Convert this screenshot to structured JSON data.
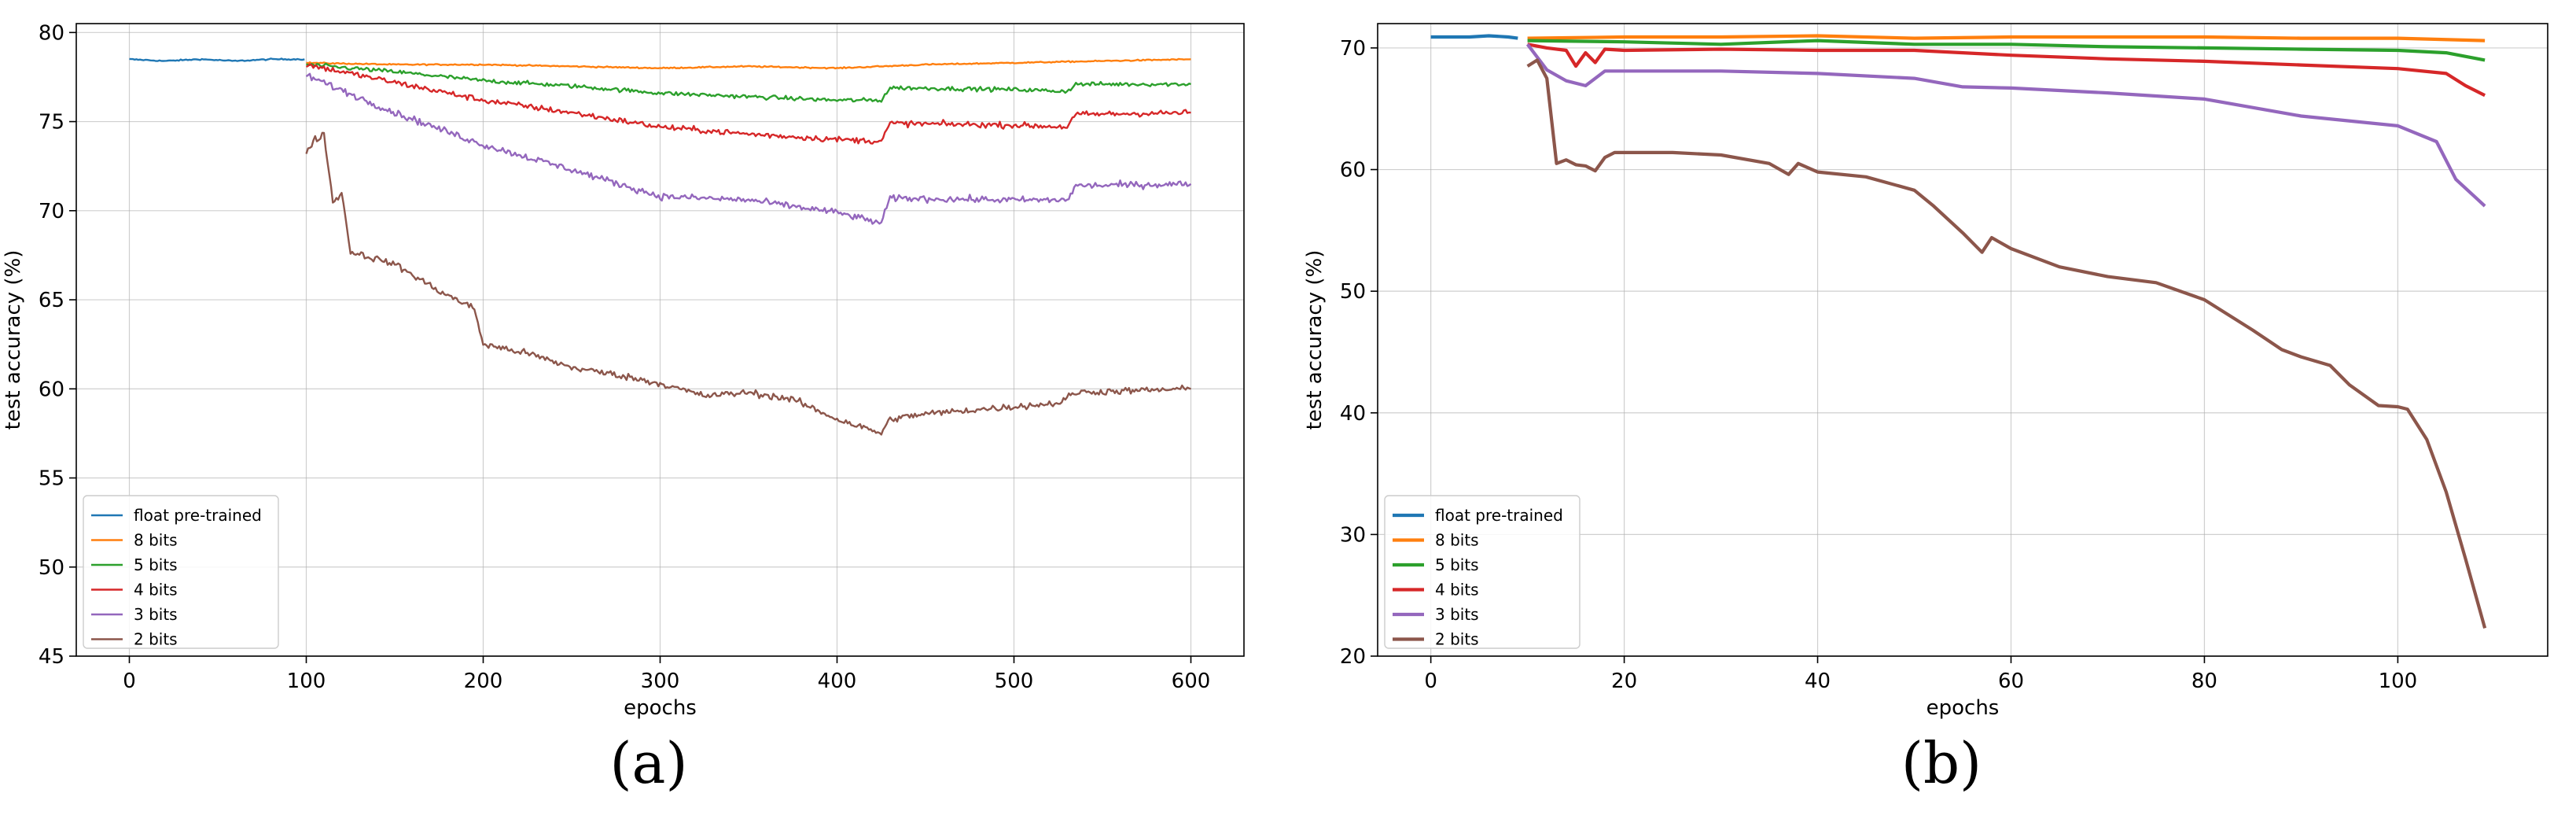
{
  "chart_data": [
    {
      "type": "line",
      "caption": "(a)",
      "xlabel": "epochs",
      "ylabel": "test accuracy (%)",
      "xlim": [
        -30,
        630
      ],
      "ylim": [
        45,
        80.5
      ],
      "xticks": [
        0,
        100,
        200,
        300,
        400,
        500,
        600
      ],
      "yticks": [
        45,
        50,
        55,
        60,
        65,
        70,
        75,
        80
      ],
      "grid": true,
      "legend_position": "lower-left",
      "noisy": true,
      "series": [
        {
          "name": "float pre-trained",
          "color": "#1f77b4",
          "x": [
            0,
            20,
            40,
            60,
            80,
            99
          ],
          "y": [
            78.5,
            78.4,
            78.5,
            78.4,
            78.5,
            78.5
          ]
        },
        {
          "name": "8 bits",
          "color": "#ff7f0e",
          "x": [
            100,
            150,
            200,
            250,
            300,
            350,
            400,
            450,
            500,
            550,
            600
          ],
          "y": [
            78.3,
            78.2,
            78.2,
            78.1,
            78.0,
            78.1,
            78.0,
            78.2,
            78.3,
            78.4,
            78.5
          ]
        },
        {
          "name": "5 bits",
          "color": "#2ca02c",
          "x": [
            100,
            150,
            200,
            250,
            300,
            350,
            400,
            425,
            430,
            500,
            530,
            535,
            600
          ],
          "y": [
            78.2,
            77.8,
            77.3,
            77.0,
            76.6,
            76.4,
            76.2,
            76.2,
            76.9,
            76.8,
            76.7,
            77.1,
            77.1
          ]
        },
        {
          "name": "4 bits",
          "color": "#d62728",
          "x": [
            100,
            150,
            200,
            250,
            300,
            350,
            400,
            425,
            430,
            500,
            530,
            535,
            600
          ],
          "y": [
            78.2,
            77.2,
            76.2,
            75.5,
            74.7,
            74.3,
            74.0,
            73.9,
            74.9,
            74.8,
            74.7,
            75.4,
            75.5
          ]
        },
        {
          "name": "3 bits",
          "color": "#9467bd",
          "x": [
            100,
            150,
            200,
            250,
            300,
            350,
            400,
            425,
            430,
            500,
            530,
            535,
            600
          ],
          "y": [
            77.6,
            75.5,
            73.7,
            72.3,
            70.8,
            70.6,
            69.9,
            69.3,
            70.7,
            70.6,
            70.6,
            71.4,
            71.5
          ]
        },
        {
          "name": "2 bits",
          "color": "#8c564b",
          "x": [
            100,
            105,
            110,
            115,
            120,
            125,
            150,
            175,
            195,
            200,
            225,
            250,
            275,
            300,
            325,
            350,
            375,
            400,
            425,
            430,
            450,
            500,
            525,
            535,
            600
          ],
          "y": [
            73.3,
            74.0,
            74.3,
            70.5,
            71.0,
            67.7,
            67.0,
            65.5,
            64.5,
            62.5,
            62.0,
            61.2,
            60.8,
            60.3,
            59.6,
            59.8,
            59.4,
            58.3,
            57.5,
            58.3,
            58.6,
            59.0,
            59.2,
            59.8,
            60.0
          ]
        }
      ]
    },
    {
      "type": "line",
      "caption": "(b)",
      "xlabel": "epochs",
      "ylabel": "test accuracy (%)",
      "xlim": [
        -5.5,
        115.5
      ],
      "ylim": [
        20,
        72
      ],
      "xticks": [
        0,
        20,
        40,
        60,
        80,
        100
      ],
      "yticks": [
        20,
        30,
        40,
        50,
        60,
        70
      ],
      "grid": true,
      "legend_position": "lower-left",
      "noisy": false,
      "series": [
        {
          "name": "float pre-trained",
          "color": "#1f77b4",
          "x": [
            0,
            2,
            4,
            6,
            8,
            9
          ],
          "y": [
            70.9,
            70.9,
            70.9,
            71.0,
            70.9,
            70.8
          ]
        },
        {
          "name": "8 bits",
          "color": "#ff7f0e",
          "x": [
            10,
            20,
            30,
            40,
            50,
            60,
            70,
            80,
            90,
            100,
            109
          ],
          "y": [
            70.8,
            70.9,
            70.9,
            71.0,
            70.8,
            70.9,
            70.9,
            70.9,
            70.8,
            70.8,
            70.6
          ]
        },
        {
          "name": "5 bits",
          "color": "#2ca02c",
          "x": [
            10,
            20,
            30,
            40,
            50,
            60,
            70,
            80,
            90,
            100,
            105,
            109
          ],
          "y": [
            70.6,
            70.5,
            70.3,
            70.6,
            70.3,
            70.3,
            70.1,
            70.0,
            69.9,
            69.8,
            69.6,
            69.0
          ]
        },
        {
          "name": "4 bits",
          "color": "#d62728",
          "x": [
            10,
            12,
            14,
            15,
            16,
            17,
            18,
            20,
            30,
            40,
            50,
            60,
            70,
            80,
            90,
            100,
            105,
            107,
            109
          ],
          "y": [
            70.3,
            70.0,
            69.8,
            68.5,
            69.6,
            68.8,
            69.9,
            69.8,
            69.9,
            69.8,
            69.8,
            69.4,
            69.1,
            68.9,
            68.6,
            68.3,
            67.9,
            66.9,
            66.1
          ]
        },
        {
          "name": "3 bits",
          "color": "#9467bd",
          "x": [
            10,
            12,
            14,
            16,
            18,
            20,
            30,
            40,
            50,
            55,
            60,
            70,
            80,
            90,
            100,
            104,
            106,
            109
          ],
          "y": [
            70.3,
            68.2,
            67.3,
            66.9,
            68.1,
            68.1,
            68.1,
            67.9,
            67.5,
            66.8,
            66.7,
            66.3,
            65.8,
            64.4,
            63.6,
            62.3,
            59.2,
            57.0
          ]
        },
        {
          "name": "2 bits",
          "color": "#8c564b",
          "x": [
            10,
            11,
            12,
            13,
            14,
            15,
            16,
            17,
            18,
            19,
            20,
            25,
            30,
            35,
            37,
            38,
            40,
            45,
            50,
            52,
            55,
            57,
            58,
            60,
            65,
            70,
            75,
            80,
            85,
            88,
            90,
            93,
            95,
            98,
            100,
            101,
            103,
            105,
            107,
            109
          ],
          "y": [
            68.5,
            69.0,
            67.5,
            60.5,
            60.8,
            60.4,
            60.3,
            59.9,
            61.0,
            61.4,
            61.4,
            61.4,
            61.2,
            60.5,
            59.6,
            60.5,
            59.8,
            59.4,
            58.3,
            57.0,
            54.8,
            53.2,
            54.4,
            53.5,
            52.0,
            51.2,
            50.7,
            49.3,
            46.8,
            45.2,
            44.6,
            43.9,
            42.3,
            40.6,
            40.5,
            40.3,
            37.8,
            33.5,
            28.0,
            22.3
          ]
        }
      ]
    }
  ]
}
